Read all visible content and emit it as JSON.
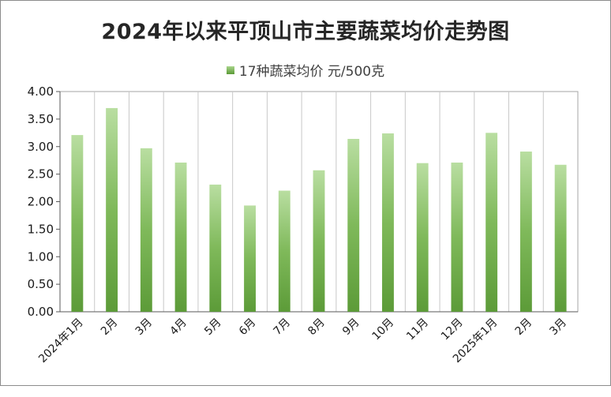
{
  "chart_data": {
    "type": "bar",
    "title": "2024年以来平顶山市主要蔬菜均价走势图",
    "legend": [
      "17种蔬菜均价 元/500克"
    ],
    "legend_position": "top",
    "categories": [
      "2024年1月",
      "2月",
      "3月",
      "4月",
      "5月",
      "6月",
      "7月",
      "8月",
      "9月",
      "10月",
      "11月",
      "12月",
      "2025年1月",
      "2月",
      "3月"
    ],
    "series": [
      {
        "name": "17种蔬菜均价 元/500克",
        "values": [
          3.21,
          3.7,
          2.97,
          2.71,
          2.31,
          1.93,
          2.2,
          2.57,
          3.14,
          3.24,
          2.7,
          2.71,
          3.25,
          2.91,
          2.67
        ],
        "color_top": "#b9dea1",
        "color_bottom": "#5c9b38"
      }
    ],
    "ylim": [
      0,
      4
    ],
    "yticks": [
      "0.00",
      "0.50",
      "1.00",
      "1.50",
      "2.00",
      "2.50",
      "3.00",
      "3.50",
      "4.00"
    ],
    "xlabel": "",
    "ylabel": "",
    "grid": "vertical"
  }
}
